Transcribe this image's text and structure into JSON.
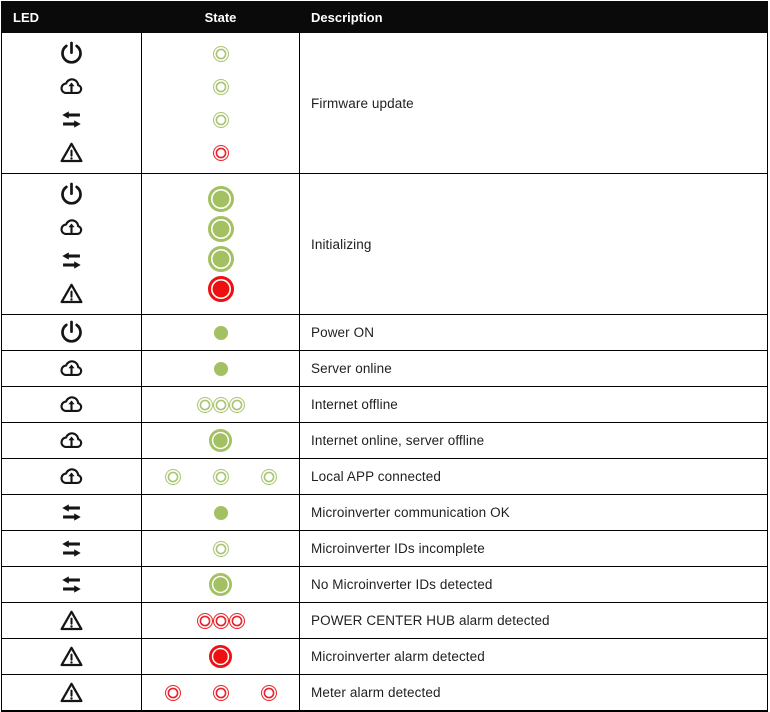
{
  "header": {
    "led": "LED",
    "state": "State",
    "description": "Description"
  },
  "colors": {
    "green": "#a3c162",
    "green_ring": "#a9c572",
    "red": "#ee1010",
    "red_ring": "#e8242c"
  },
  "rows": [
    {
      "icons": [
        "power-icon",
        "cloud-upload-icon",
        "exchange-arrows-icon",
        "warning-icon"
      ],
      "layout": "stack",
      "leds": [
        {
          "type": "ring",
          "color": "green_ring"
        },
        {
          "type": "ring",
          "color": "green_ring"
        },
        {
          "type": "ring",
          "color": "green_ring"
        },
        {
          "type": "ring",
          "color": "red_ring"
        }
      ],
      "description": "Firmware update"
    },
    {
      "icons": [
        "power-icon",
        "cloud-upload-icon",
        "exchange-arrows-icon",
        "warning-icon"
      ],
      "layout": "stack",
      "leds": [
        {
          "type": "solid",
          "color": "green",
          "size": "lg"
        },
        {
          "type": "solid",
          "color": "green",
          "size": "lg"
        },
        {
          "type": "solid",
          "color": "green",
          "size": "lg"
        },
        {
          "type": "solid",
          "color": "red",
          "size": "lg"
        }
      ],
      "description": "Initializing"
    },
    {
      "icons": [
        "power-icon"
      ],
      "layout": "single",
      "leds": [
        {
          "type": "dot",
          "color": "green"
        }
      ],
      "description": "Power ON"
    },
    {
      "icons": [
        "cloud-upload-icon"
      ],
      "layout": "single",
      "leds": [
        {
          "type": "dot",
          "color": "green"
        }
      ],
      "description": "Server online"
    },
    {
      "icons": [
        "cloud-upload-icon"
      ],
      "layout": "adjacent",
      "leds": [
        {
          "type": "ring",
          "color": "green_ring"
        },
        {
          "type": "ring",
          "color": "green_ring"
        },
        {
          "type": "ring",
          "color": "green_ring"
        }
      ],
      "description": "Internet offline"
    },
    {
      "icons": [
        "cloud-upload-icon"
      ],
      "layout": "single",
      "leds": [
        {
          "type": "solid",
          "color": "green"
        }
      ],
      "description": "Internet online, server offline"
    },
    {
      "icons": [
        "cloud-upload-icon"
      ],
      "layout": "spaced",
      "leds": [
        {
          "type": "ring",
          "color": "green_ring"
        },
        {
          "type": "ring",
          "color": "green_ring"
        },
        {
          "type": "ring",
          "color": "green_ring"
        }
      ],
      "description": "Local APP connected"
    },
    {
      "icons": [
        "exchange-arrows-icon"
      ],
      "layout": "single",
      "leds": [
        {
          "type": "dot",
          "color": "green"
        }
      ],
      "description": "Microinverter communication OK"
    },
    {
      "icons": [
        "exchange-arrows-icon"
      ],
      "layout": "single",
      "leds": [
        {
          "type": "ring",
          "color": "green_ring"
        }
      ],
      "description": "Microinverter IDs incomplete"
    },
    {
      "icons": [
        "exchange-arrows-icon"
      ],
      "layout": "single",
      "leds": [
        {
          "type": "solid",
          "color": "green"
        }
      ],
      "description": "No Microinverter IDs detected"
    },
    {
      "icons": [
        "warning-icon"
      ],
      "layout": "adjacent",
      "leds": [
        {
          "type": "ring",
          "color": "red_ring"
        },
        {
          "type": "ring",
          "color": "red_ring"
        },
        {
          "type": "ring",
          "color": "red_ring"
        }
      ],
      "description": "POWER CENTER HUB alarm detected"
    },
    {
      "icons": [
        "warning-icon"
      ],
      "layout": "single",
      "leds": [
        {
          "type": "solid",
          "color": "red"
        }
      ],
      "description": "Microinverter alarm detected"
    },
    {
      "icons": [
        "warning-icon"
      ],
      "layout": "spaced",
      "leds": [
        {
          "type": "ring",
          "color": "red_ring"
        },
        {
          "type": "ring",
          "color": "red_ring"
        },
        {
          "type": "ring",
          "color": "red_ring"
        }
      ],
      "description": "Meter alarm detected"
    }
  ]
}
